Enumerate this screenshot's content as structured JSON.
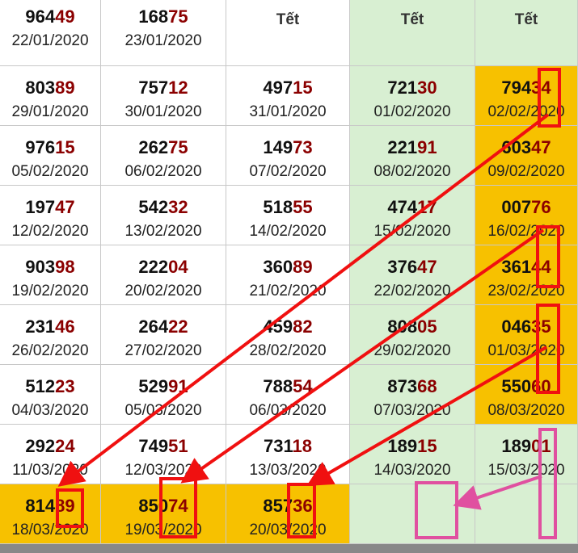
{
  "table": {
    "rows": [
      [
        {
          "head": "964",
          "tail": "49",
          "date": "22/01/2020"
        },
        {
          "head": "168",
          "tail": "75",
          "date": "23/01/2020"
        },
        {
          "label": "Tết"
        },
        {
          "label": "Tết"
        },
        {
          "label": "Tết"
        }
      ],
      [
        {
          "head": "803",
          "tail": "89",
          "date": "29/01/2020"
        },
        {
          "head": "757",
          "tail": "12",
          "date": "30/01/2020"
        },
        {
          "head": "497",
          "tail": "15",
          "date": "31/01/2020"
        },
        {
          "head": "721",
          "tail": "30",
          "date": "01/02/2020"
        },
        {
          "head": "794",
          "tail": "34",
          "date": "02/02/2020"
        }
      ],
      [
        {
          "head": "976",
          "tail": "15",
          "date": "05/02/2020"
        },
        {
          "head": "262",
          "tail": "75",
          "date": "06/02/2020"
        },
        {
          "head": "149",
          "tail": "73",
          "date": "07/02/2020"
        },
        {
          "head": "221",
          "tail": "91",
          "date": "08/02/2020"
        },
        {
          "head": "603",
          "tail": "47",
          "date": "09/02/2020"
        }
      ],
      [
        {
          "head": "197",
          "tail": "47",
          "date": "12/02/2020"
        },
        {
          "head": "542",
          "tail": "32",
          "date": "13/02/2020"
        },
        {
          "head": "518",
          "tail": "55",
          "date": "14/02/2020"
        },
        {
          "head": "474",
          "tail": "17",
          "date": "15/02/2020"
        },
        {
          "head": "007",
          "tail": "76",
          "date": "16/02/2020"
        }
      ],
      [
        {
          "head": "903",
          "tail": "98",
          "date": "19/02/2020"
        },
        {
          "head": "222",
          "tail": "04",
          "date": "20/02/2020"
        },
        {
          "head": "360",
          "tail": "89",
          "date": "21/02/2020"
        },
        {
          "head": "376",
          "tail": "47",
          "date": "22/02/2020"
        },
        {
          "head": "361",
          "tail": "44",
          "date": "23/02/2020"
        }
      ],
      [
        {
          "head": "231",
          "tail": "46",
          "date": "26/02/2020"
        },
        {
          "head": "264",
          "tail": "22",
          "date": "27/02/2020"
        },
        {
          "head": "459",
          "tail": "82",
          "date": "28/02/2020"
        },
        {
          "head": "808",
          "tail": "05",
          "date": "29/02/2020"
        },
        {
          "head": "046",
          "tail": "35",
          "date": "01/03/2020"
        }
      ],
      [
        {
          "head": "512",
          "tail": "23",
          "date": "04/03/2020"
        },
        {
          "head": "529",
          "tail": "91",
          "date": "05/03/2020"
        },
        {
          "head": "788",
          "tail": "54",
          "date": "06/03/2020"
        },
        {
          "head": "873",
          "tail": "68",
          "date": "07/03/2020"
        },
        {
          "head": "550",
          "tail": "60",
          "date": "08/03/2020"
        }
      ],
      [
        {
          "head": "292",
          "tail": "24",
          "date": "11/03/2020"
        },
        {
          "head": "749",
          "tail": "51",
          "date": "12/03/2020"
        },
        {
          "head": "731",
          "tail": "18",
          "date": "13/03/2020"
        },
        {
          "head": "189",
          "tail": "15",
          "date": "14/03/2020"
        },
        {
          "head": "189",
          "tail": "01",
          "date": "15/03/2020"
        }
      ],
      [
        {
          "head": "814",
          "tail": "89",
          "date": "18/03/2020"
        },
        {
          "head": "850",
          "tail": "74",
          "date": "19/03/2020"
        },
        {
          "head": "857",
          "tail": "36",
          "date": "20/03/2020"
        }
      ]
    ]
  }
}
